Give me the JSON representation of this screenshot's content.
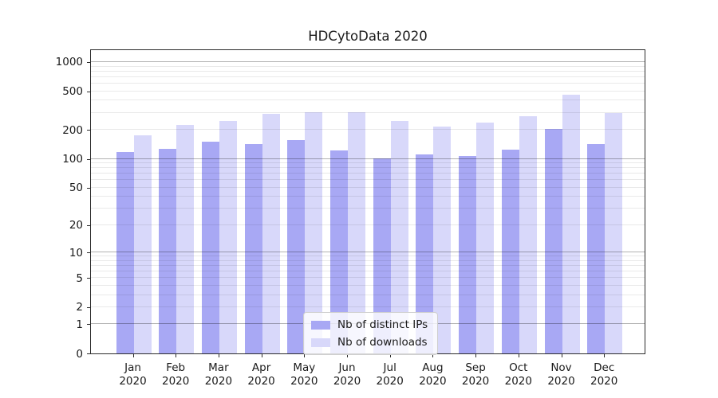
{
  "header": {
    "title": "HDCytoData 2020"
  },
  "colors": {
    "distinct_ips": "#a8a8f4",
    "downloads": "#d8d8fa",
    "axis_text": "#1a1a1a",
    "frame": "#2b2b2b"
  },
  "legend": {
    "items": [
      {
        "label": "Nb of distinct IPs",
        "color": "#a8a8f4"
      },
      {
        "label": "Nb of downloads",
        "color": "#d8d8fa"
      }
    ]
  },
  "axes": {
    "y": {
      "scale": "log1p",
      "tick_values": [
        0,
        1,
        2,
        5,
        10,
        20,
        50,
        100,
        200,
        500,
        1000
      ],
      "tick_labels": [
        "0",
        "1",
        "2",
        "5",
        "10",
        "20",
        "50",
        "100",
        "200",
        "500",
        "1000"
      ]
    },
    "x": {
      "months": [
        "Jan",
        "Feb",
        "Mar",
        "Apr",
        "May",
        "Jun",
        "Jul",
        "Aug",
        "Sep",
        "Oct",
        "Nov",
        "Dec"
      ],
      "year": "2020"
    }
  },
  "chart_data": {
    "type": "bar",
    "title": "HDCytoData 2020",
    "categories": [
      "Jan 2020",
      "Feb 2020",
      "Mar 2020",
      "Apr 2020",
      "May 2020",
      "Jun 2020",
      "Jul 2020",
      "Aug 2020",
      "Sep 2020",
      "Oct 2020",
      "Nov 2020",
      "Dec 2020"
    ],
    "series": [
      {
        "name": "Nb of distinct IPs",
        "color": "#a8a8f4",
        "values": [
          117,
          127,
          150,
          142,
          157,
          122,
          101,
          112,
          107,
          124,
          203,
          142
        ]
      },
      {
        "name": "Nb of downloads",
        "color": "#d8d8fa",
        "values": [
          176,
          225,
          245,
          291,
          305,
          305,
          248,
          216,
          237,
          278,
          460,
          296
        ]
      }
    ],
    "xlabel": "",
    "ylabel": "",
    "y_scale": "log1p",
    "y_ticks": [
      0,
      1,
      2,
      5,
      10,
      20,
      50,
      100,
      200,
      500,
      1000
    ],
    "ylim": [
      0,
      1500
    ],
    "grid": true,
    "grid_major_lines": [
      1,
      10,
      100,
      1000
    ],
    "legend_position": "lower center"
  }
}
